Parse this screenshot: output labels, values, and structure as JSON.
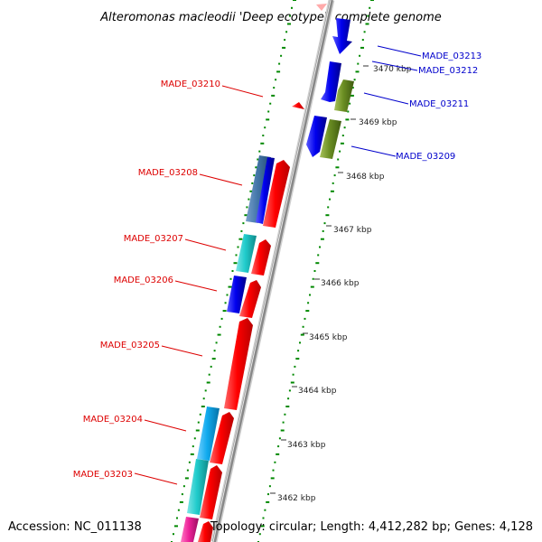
{
  "header": {
    "title": "Alteromonas macleodii 'Deep ecotype', complete genome"
  },
  "footer": {
    "accession": "Accession: NC_011138",
    "topology": "Topology: circular; Length: 4,412,282 bp; Genes: 4,128"
  },
  "colors": {
    "forward_label": "#dd0000",
    "reverse_label": "#0000cc",
    "backbone": "#888888",
    "gc_dots": "#008800",
    "red": "#ff0000",
    "blue": "#0000ee",
    "cyan": "#20cccc",
    "skyblue": "#10aaee",
    "steelblue": "#4477aa",
    "olive": "#6b8e23",
    "magenta": "#ee2299"
  },
  "scale_labels": [
    "3470 kbp",
    "3469 kbp",
    "3468 kbp",
    "3467 kbp",
    "3466 kbp",
    "3465 kbp",
    "3464 kbp",
    "3463 kbp",
    "3462 kbp"
  ],
  "gene_labels_forward": [
    "MADE_03210",
    "MADE_03208",
    "MADE_03207",
    "MADE_03206",
    "MADE_03205",
    "MADE_03204",
    "MADE_03203"
  ],
  "gene_labels_reverse": [
    "MADE_03213",
    "MADE_03212",
    "MADE_03211",
    "MADE_03209"
  ]
}
